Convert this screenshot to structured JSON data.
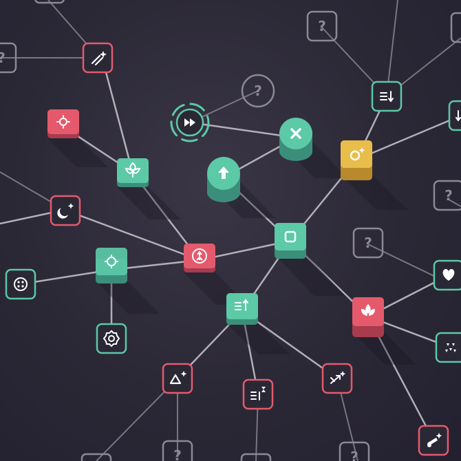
{
  "colors": {
    "background": "#2b2836",
    "teal": "#5cc9a7",
    "teal_dark": "#3b8f7a",
    "red": "#e45a6c",
    "red_dark": "#a83b4e",
    "gold": "#e9bd4b",
    "gold_dark": "#b98a2c",
    "locked": "#8c8996",
    "edge": "#c9c7cf"
  },
  "locked_symbol": "?",
  "nodes": {
    "locked_top_center": {
      "label": "?",
      "state": "locked"
    },
    "locked_left_edge": {
      "label": "?",
      "state": "locked"
    },
    "locked_circle": {
      "label": "?",
      "state": "locked"
    },
    "locked_mid_right": {
      "label": "?",
      "state": "locked"
    },
    "locked_right_edge": {
      "label": "?",
      "state": "locked"
    },
    "locked_bottom_1": {
      "label": "?",
      "state": "locked"
    },
    "locked_bottom_2": {
      "label": "?",
      "state": "locked"
    },
    "skill_slash_star": {
      "icon": "slash-sparkle-icon",
      "state": "available"
    },
    "skill_gear_burst": {
      "icon": "burst-icon",
      "state": "unlocked"
    },
    "skill_flower": {
      "icon": "flower-icon",
      "state": "unlocked"
    },
    "skill_moon": {
      "icon": "moon-sparkle-icon",
      "state": "available"
    },
    "skill_crosshair": {
      "icon": "crosshair-icon",
      "state": "unlocked"
    },
    "skill_dots": {
      "icon": "dots-circle-icon",
      "state": "available"
    },
    "skill_cog": {
      "icon": "cog-icon",
      "state": "available"
    },
    "skill_root": {
      "icon": "root-icon",
      "state": "unlocked"
    },
    "skill_fast_forward": {
      "icon": "fast-forward-icon",
      "state": "active"
    },
    "skill_x": {
      "icon": "close-icon",
      "state": "unlocked"
    },
    "skill_up": {
      "icon": "up-arrow-icon",
      "state": "unlocked"
    },
    "skill_hub": {
      "icon": "square-icon",
      "state": "unlocked"
    },
    "skill_gold": {
      "icon": "ring-sparkle-icon",
      "state": "unlocked"
    },
    "skill_list_down": {
      "icon": "list-down-icon",
      "state": "available"
    },
    "skill_list_down_2": {
      "icon": "list-down-icon",
      "state": "available"
    },
    "skill_list_up": {
      "icon": "list-up-icon",
      "state": "unlocked"
    },
    "skill_lotus": {
      "icon": "lotus-icon",
      "state": "unlocked"
    },
    "skill_heart": {
      "icon": "heart-icon",
      "state": "available"
    },
    "skill_triangles": {
      "icon": "triangles-icon",
      "state": "available"
    },
    "skill_triangle_star": {
      "icon": "triangle-sparkle-icon",
      "state": "available"
    },
    "skill_list_hourglass": {
      "icon": "list-hourglass-icon",
      "state": "available"
    },
    "skill_arrows": {
      "icon": "arrows-sparkle-icon",
      "state": "available"
    },
    "skill_cannon": {
      "icon": "cannon-sparkle-icon",
      "state": "available"
    }
  }
}
